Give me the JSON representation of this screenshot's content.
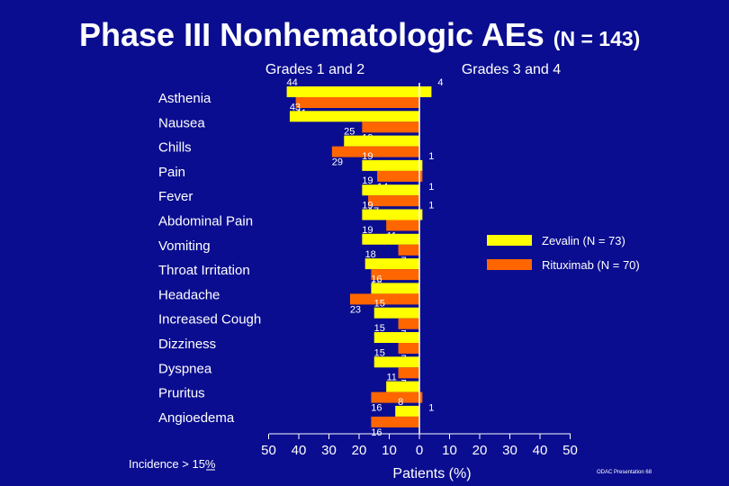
{
  "title": "Phase III Nonhematologic AEs",
  "title_suffix": "(N = 143)",
  "colors": {
    "background": "#0a0d8f",
    "zevalin": "#ffff00",
    "rituximab": "#ff6600",
    "text": "#ffffff"
  },
  "chart_data": {
    "type": "bar",
    "orientation": "horizontal-butterfly",
    "column_headers": [
      "Grades 1 and 2",
      "Grades 3 and 4"
    ],
    "categories": [
      "Asthenia",
      "Nausea",
      "Chills",
      "Pain",
      "Fever",
      "Abdominal Pain",
      "Vomiting",
      "Throat Irritation",
      "Headache",
      "Increased Cough",
      "Dizziness",
      "Dyspnea",
      "Pruritus",
      "Angioedema"
    ],
    "series": [
      {
        "name": "Zevalin (N = 73)",
        "color": "#ffff00",
        "grades_1_2": [
          44,
          43,
          25,
          19,
          19,
          19,
          19,
          18,
          16,
          15,
          15,
          15,
          11,
          8
        ],
        "grades_3_4": [
          4,
          0,
          0,
          1,
          0,
          1,
          0,
          0,
          0,
          0,
          0,
          0,
          0,
          0
        ]
      },
      {
        "name": "Rituximab (N = 70)",
        "color": "#ff6600",
        "grades_1_2": [
          41,
          19,
          29,
          14,
          17,
          11,
          7,
          16,
          23,
          7,
          7,
          7,
          16,
          16
        ],
        "grades_3_4": [
          0,
          0,
          0,
          1,
          0,
          0,
          0,
          0,
          0,
          0,
          0,
          0,
          1,
          0
        ]
      }
    ],
    "x_ticks": [
      "50",
      "40",
      "30",
      "20",
      "10",
      "0",
      "10",
      "20",
      "30",
      "40",
      "50"
    ],
    "xlabel": "Patients (%)",
    "xlim": [
      -50,
      50
    ],
    "legend_position": "right",
    "footnote": "Incidence > 15%",
    "source": "ODAC Presentation 68"
  }
}
